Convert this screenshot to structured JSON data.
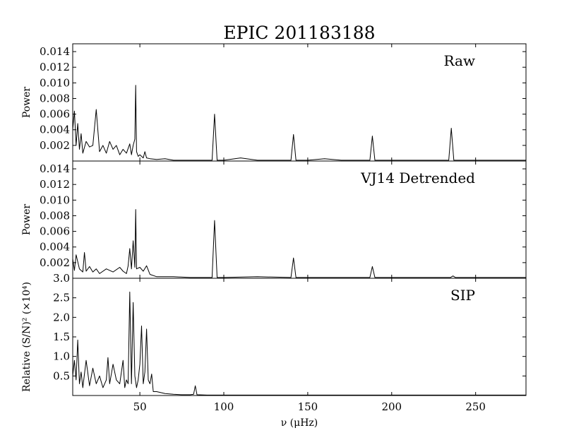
{
  "chart_data": {
    "type": "line",
    "title": "EPIC 201183188",
    "xlabel": "ν (μHz)",
    "xlim": [
      10,
      280
    ],
    "xticks": [
      "50",
      "100",
      "150",
      "200",
      "250"
    ],
    "panels": [
      {
        "label": "Raw",
        "ylabel": "Power",
        "ylim": [
          0,
          0.015
        ],
        "yticks": [
          "0.014",
          "0.012",
          "0.010",
          "0.008",
          "0.006",
          "0.004",
          "0.002"
        ],
        "series": {
          "x": [
            10,
            11,
            12,
            13,
            14,
            15,
            16,
            18,
            20,
            22,
            24,
            26,
            28,
            30,
            32,
            34,
            36,
            38,
            40,
            42,
            44,
            45,
            46,
            47,
            47.5,
            48,
            49,
            50,
            52,
            53,
            54,
            56,
            60,
            65,
            70,
            80,
            90,
            93,
            94.5,
            96,
            100,
            110,
            120,
            140,
            141.5,
            143,
            150,
            160,
            170,
            180,
            187,
            188.5,
            190,
            200,
            210,
            220,
            234,
            235.5,
            237,
            250,
            260,
            270,
            280
          ],
          "y": [
            0.004,
            0.0064,
            0.002,
            0.0048,
            0.0015,
            0.0035,
            0.001,
            0.0025,
            0.0018,
            0.002,
            0.0066,
            0.0012,
            0.002,
            0.001,
            0.0025,
            0.0015,
            0.002,
            0.0008,
            0.0015,
            0.001,
            0.0022,
            0.0008,
            0.002,
            0.0028,
            0.0097,
            0.0012,
            0.0006,
            0.0008,
            0.0004,
            0.0012,
            0.0004,
            0.0003,
            0.0002,
            0.0003,
            0.0001,
            0.0001,
            0.0001,
            0.0001,
            0.006,
            0.0001,
            0.0001,
            0.0004,
            0.0001,
            0.0001,
            0.0034,
            0.0001,
            0.0001,
            0.0003,
            0.0001,
            0.0001,
            0.0001,
            0.0032,
            0.0001,
            0.0001,
            0.0001,
            0.0001,
            0.0001,
            0.0042,
            0.0001,
            0.0001,
            0.0001,
            0.0001,
            0.0001
          ]
        }
      },
      {
        "label": "VJ14 Detrended",
        "ylabel": "Power",
        "ylim": [
          0,
          0.015
        ],
        "yticks": [
          "0.014",
          "0.012",
          "0.010",
          "0.008",
          "0.006",
          "0.004",
          "0.002"
        ],
        "series": {
          "x": [
            10,
            11,
            12,
            14,
            16,
            17,
            18,
            20,
            22,
            24,
            26,
            30,
            34,
            38,
            40,
            42,
            43,
            44,
            45,
            46,
            47,
            47.5,
            48,
            50,
            52,
            54,
            56,
            60,
            70,
            80,
            90,
            93,
            94.5,
            96,
            100,
            120,
            140,
            141.5,
            143,
            160,
            180,
            187,
            188.5,
            190,
            210,
            235,
            236.5,
            238,
            260,
            280
          ],
          "y": [
            0.0025,
            0.001,
            0.003,
            0.0012,
            0.0008,
            0.0033,
            0.0009,
            0.0015,
            0.0008,
            0.0012,
            0.0006,
            0.0012,
            0.0008,
            0.0014,
            0.0009,
            0.0006,
            0.0016,
            0.0038,
            0.0012,
            0.0048,
            0.0014,
            0.0088,
            0.0012,
            0.0014,
            0.0009,
            0.0016,
            0.0005,
            0.0002,
            0.0002,
            0.0001,
            0.0001,
            0.0001,
            0.0074,
            0.0001,
            0.0001,
            0.0002,
            0.0001,
            0.0026,
            0.0001,
            0.0001,
            0.0001,
            0.0001,
            0.0015,
            0.0001,
            0.0001,
            0.0001,
            0.0003,
            0.0001,
            0.0001,
            0.0001
          ]
        }
      },
      {
        "label": "SIP",
        "ylabel": "Relative (S/N)² (×10⁴)",
        "ylim": [
          0,
          3.0
        ],
        "yticks": [
          "3.0",
          "2.5",
          "2.0",
          "1.5",
          "1.0",
          "0.5"
        ],
        "series": {
          "x": [
            10,
            11,
            12,
            13,
            14,
            15,
            16,
            18,
            20,
            22,
            24,
            26,
            28,
            30,
            31,
            32,
            34,
            36,
            38,
            40,
            41,
            42,
            43,
            44,
            45,
            46,
            47,
            48,
            49,
            50,
            51,
            52,
            53,
            54,
            55,
            56,
            57,
            58,
            60,
            65,
            70,
            75,
            80,
            82,
            83,
            84,
            90,
            100,
            120,
            150,
            200,
            250,
            280
          ],
          "y": [
            0.5,
            0.9,
            0.4,
            1.42,
            0.3,
            0.6,
            0.2,
            0.9,
            0.25,
            0.7,
            0.3,
            0.5,
            0.2,
            0.4,
            0.97,
            0.3,
            0.8,
            0.4,
            0.3,
            0.9,
            0.2,
            0.4,
            0.3,
            2.65,
            0.3,
            2.38,
            0.5,
            0.2,
            0.4,
            0.8,
            1.78,
            0.3,
            0.6,
            1.7,
            0.4,
            0.3,
            0.55,
            0.1,
            0.1,
            0.05,
            0.03,
            0.02,
            0.02,
            0.03,
            0.25,
            0.02,
            0.01,
            0.01,
            0.01,
            0.01,
            0.01,
            0.01,
            0.01
          ]
        }
      }
    ]
  }
}
